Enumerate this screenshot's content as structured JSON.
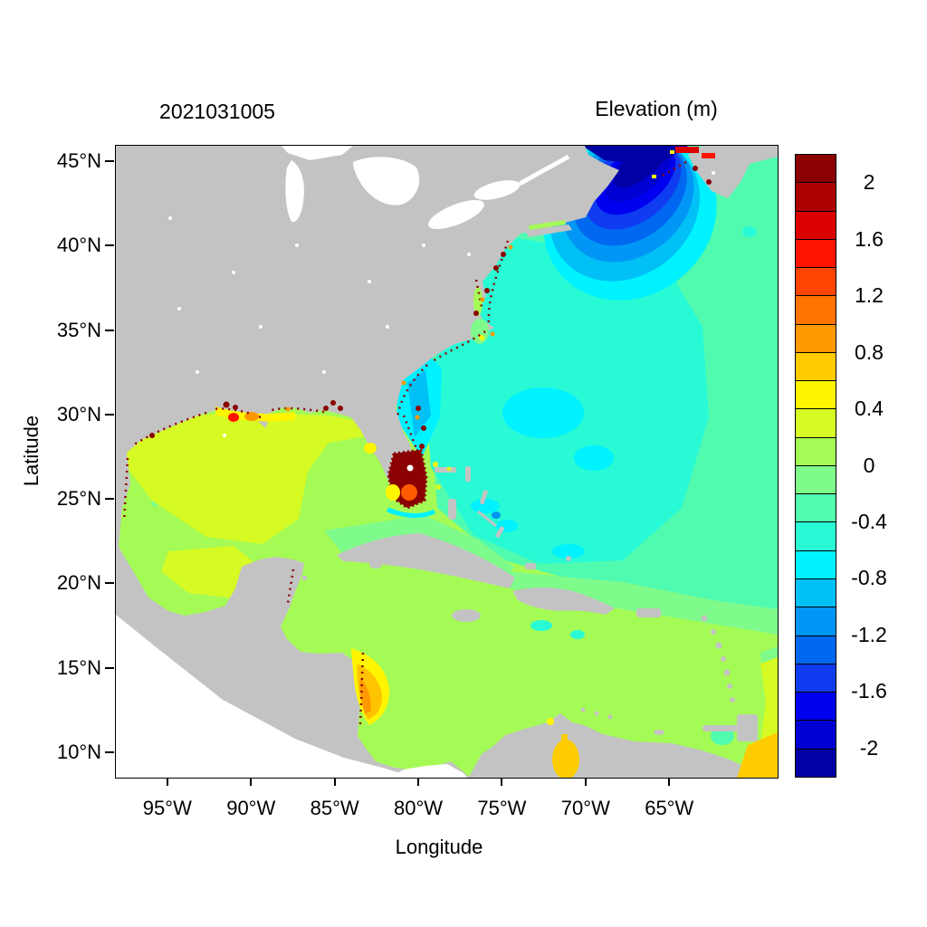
{
  "header": {
    "left_title": "2021031005",
    "right_title": "Elevation (m)"
  },
  "axes": {
    "x": {
      "label": "Longitude",
      "ticks": [
        {
          "value": 95,
          "label": "95°W"
        },
        {
          "value": 90,
          "label": "90°W"
        },
        {
          "value": 85,
          "label": "85°W"
        },
        {
          "value": 80,
          "label": "80°W"
        },
        {
          "value": 75,
          "label": "75°W"
        },
        {
          "value": 70,
          "label": "70°W"
        },
        {
          "value": 65,
          "label": "65°W"
        }
      ]
    },
    "y": {
      "label": "Latitude",
      "ticks": [
        {
          "value": 45,
          "label": "45°N"
        },
        {
          "value": 40,
          "label": "40°N"
        },
        {
          "value": 35,
          "label": "35°N"
        },
        {
          "value": 30,
          "label": "30°N"
        },
        {
          "value": 25,
          "label": "25°N"
        },
        {
          "value": 20,
          "label": "20°N"
        },
        {
          "value": 15,
          "label": "15°N"
        },
        {
          "value": 10,
          "label": "10°N"
        }
      ]
    }
  },
  "chart_data": {
    "type": "heatmap",
    "title": "2021031005",
    "colorbar_label": "Elevation (m)",
    "xlabel": "Longitude",
    "ylabel": "Latitude",
    "x_ticks": [
      "95°W",
      "90°W",
      "85°W",
      "80°W",
      "75°W",
      "70°W",
      "65°W"
    ],
    "y_ticks": [
      "45°N",
      "40°N",
      "35°N",
      "30°N",
      "25°N",
      "20°N",
      "15°N",
      "10°N"
    ],
    "xlim_deg_west": [
      98.1,
      58.6
    ],
    "ylim_deg_north": [
      8.7,
      46.0
    ],
    "grid": false,
    "legend_position": "right-colorbar",
    "colorbar": {
      "min_m": -2.2,
      "max_m": 2.2,
      "step_m": 0.2,
      "tick_labels": [
        {
          "value": 2,
          "label": "2"
        },
        {
          "value": 1.6,
          "label": "1.6"
        },
        {
          "value": 1.2,
          "label": "1.2"
        },
        {
          "value": 0.8,
          "label": "0.8"
        },
        {
          "value": 0.4,
          "label": "0.4"
        },
        {
          "value": 0,
          "label": "0"
        },
        {
          "value": -0.4,
          "label": "-0.4"
        },
        {
          "value": -0.8,
          "label": "-0.8"
        },
        {
          "value": -1.2,
          "label": "-1.2"
        },
        {
          "value": -1.6,
          "label": "-1.6"
        },
        {
          "value": -2,
          "label": "-2"
        }
      ]
    },
    "palette": [
      "#8B0000",
      "#AA0000",
      "#DD0000",
      "#FF1400",
      "#FF4500",
      "#FF7300",
      "#FF9900",
      "#FFCC00",
      "#FFF500",
      "#D6FA24",
      "#A5FB55",
      "#7FFB8B",
      "#50FBB0",
      "#28FAD5",
      "#00F2FF",
      "#00C0F5",
      "#0096F5",
      "#0068F0",
      "#0F3CF0",
      "#0000F0",
      "#0000D2",
      "#0000A5"
    ],
    "map_colors": {
      "land": "#C3C3C3",
      "lakes_and_out_of_domain": "#FFFFFF",
      "frame": "#000000"
    },
    "features": [
      {
        "region": "Gulf of Maine / Bay of Fundy anomaly core",
        "elevation_m": "-2.2 to -1.6"
      },
      {
        "region": "Concentric rings around Gulf of Maine",
        "elevation_m": "-1.6 to -0.8"
      },
      {
        "region": "Northwest Atlantic offshore (Carolinas to 65W)",
        "elevation_m": "-0.6 to -0.4"
      },
      {
        "region": "Southeast Atlantic and NE corner",
        "elevation_m": "-0.4 to -0.2"
      },
      {
        "region": "Georgia Bight coastal band",
        "elevation_m": "-1.0 to -0.6"
      },
      {
        "region": "Bahamas banks patches",
        "elevation_m": "-1.2 to -0.6"
      },
      {
        "region": "Caribbean Sea basin",
        "elevation_m": "0 to 0.2"
      },
      {
        "region": "Band north of Cuba / Hispaniola",
        "elevation_m": "-0.2 to 0"
      },
      {
        "region": "Central / eastern Gulf of Mexico",
        "elevation_m": "0 to 0.2"
      },
      {
        "region": "Western Gulf of Mexico and Bay of Campeche",
        "elevation_m": "0.2 to 0.4"
      },
      {
        "region": "Louisiana / Mississippi coast hotspots",
        "elevation_m": "0.4 to >2.0"
      },
      {
        "region": "South Florida / Everglades flooded blob",
        "elevation_m": ">2.0 with 1.2-1.4 core spot"
      },
      {
        "region": "Coastal speckles (estuaries, NJ to Texas, Nova Scotia)",
        "elevation_m": ">2.0"
      },
      {
        "region": "Nicaragua coast arc",
        "elevation_m": "0.4 to 1.0"
      },
      {
        "region": "Lake Maracaibo and Trinidad corner",
        "elevation_m": "0.4 to 0.8"
      }
    ]
  }
}
